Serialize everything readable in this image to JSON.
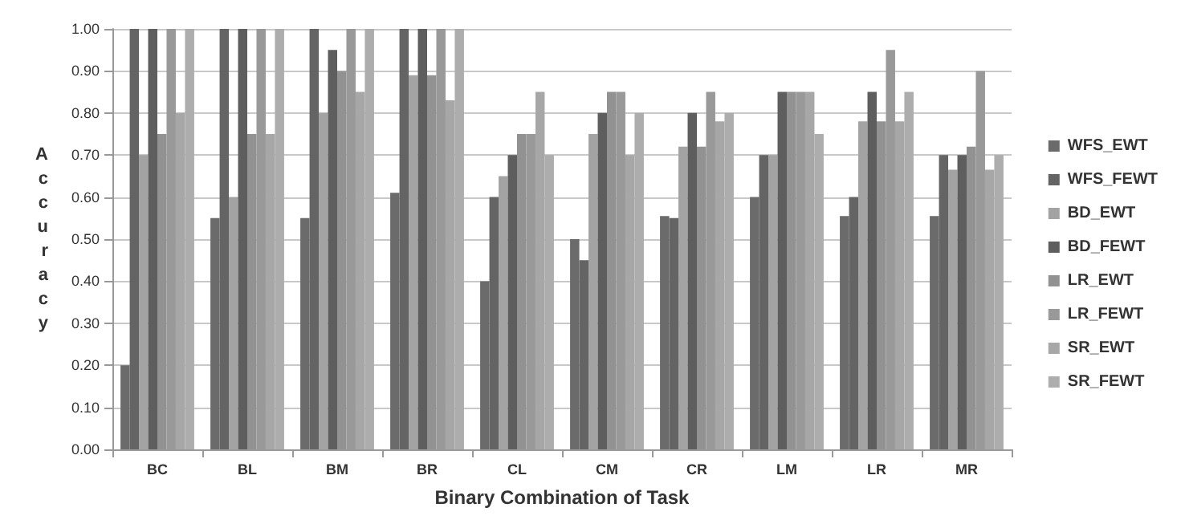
{
  "chart_data": {
    "type": "bar",
    "xlabel": "Binary Combination of Task",
    "ylabel": "Accuracy",
    "categories": [
      "BC",
      "BL",
      "BM",
      "BR",
      "CL",
      "CM",
      "CR",
      "LM",
      "LR",
      "MR"
    ],
    "series": [
      {
        "name": "WFS_EWT",
        "color": "#6b6b6b",
        "values": [
          0.2,
          0.55,
          0.55,
          0.61,
          0.4,
          0.5,
          0.555,
          0.6,
          0.555,
          0.555
        ]
      },
      {
        "name": "WFS_FEWT",
        "color": "#646464",
        "values": [
          1.0,
          1.0,
          1.0,
          1.0,
          0.6,
          0.45,
          0.55,
          0.7,
          0.6,
          0.7
        ]
      },
      {
        "name": "BD_EWT",
        "color": "#a3a3a3",
        "values": [
          0.7,
          0.6,
          0.8,
          0.89,
          0.65,
          0.75,
          0.72,
          0.7,
          0.78,
          0.665
        ]
      },
      {
        "name": "BD_FEWT",
        "color": "#5e5e5e",
        "values": [
          1.0,
          1.0,
          0.95,
          1.0,
          0.7,
          0.8,
          0.8,
          0.85,
          0.85,
          0.7
        ]
      },
      {
        "name": "LR_EWT",
        "color": "#929292",
        "values": [
          0.75,
          0.75,
          0.9,
          0.89,
          0.75,
          0.85,
          0.72,
          0.85,
          0.78,
          0.72
        ]
      },
      {
        "name": "LR_FEWT",
        "color": "#999999",
        "values": [
          1.0,
          1.0,
          1.0,
          1.0,
          0.75,
          0.85,
          0.85,
          0.85,
          0.95,
          0.9
        ]
      },
      {
        "name": "SR_EWT",
        "color": "#a7a7a7",
        "values": [
          0.8,
          0.75,
          0.85,
          0.83,
          0.85,
          0.7,
          0.78,
          0.85,
          0.78,
          0.665
        ]
      },
      {
        "name": "SR_FEWT",
        "color": "#adadad",
        "values": [
          1.0,
          1.0,
          1.0,
          1.0,
          0.7,
          0.8,
          0.8,
          0.75,
          0.85,
          0.7
        ]
      }
    ],
    "ylim": [
      0,
      1
    ],
    "yticks": [
      {
        "value": 0,
        "label": "0.00"
      },
      {
        "value": 0.1,
        "label": "0.10"
      },
      {
        "value": 0.2,
        "label": "0.20"
      },
      {
        "value": 0.3,
        "label": "0.30"
      },
      {
        "value": 0.4,
        "label": "0.40"
      },
      {
        "value": 0.5,
        "label": "0.50"
      },
      {
        "value": 0.6,
        "label": "0.60"
      },
      {
        "value": 0.7,
        "label": "0.70"
      },
      {
        "value": 0.8,
        "label": "0.80"
      },
      {
        "value": 0.9,
        "label": "0.90"
      },
      {
        "value": 1,
        "label": "1.00"
      }
    ],
    "grid": "y",
    "legend": "right"
  }
}
